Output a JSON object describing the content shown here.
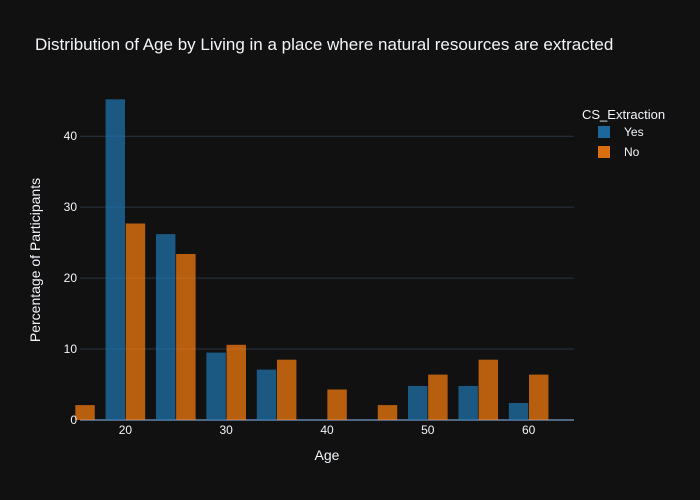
{
  "chart_data": {
    "type": "bar",
    "title": "Distribution of Age by Living in a place where natural resources are extracted",
    "xlabel": "Age",
    "ylabel": "Percentage of Participants",
    "xlim": [
      15.5,
      64.5
    ],
    "ylim": [
      0,
      47.5
    ],
    "xticks": [
      20,
      30,
      40,
      50,
      60
    ],
    "yticks": [
      0,
      10,
      20,
      30,
      40
    ],
    "grid": true,
    "legend": {
      "title": "CS_Extraction",
      "placement": "top-right"
    },
    "bin_width": 5,
    "bins": [
      15,
      20,
      25,
      30,
      35,
      40,
      45,
      50,
      55,
      60
    ],
    "series": [
      {
        "name": "Yes",
        "color": "#1f77b4",
        "values": [
          0,
          45.2,
          26.2,
          9.5,
          7.1,
          0,
          0,
          4.8,
          4.8,
          2.4
        ]
      },
      {
        "name": "No",
        "color": "#ff7f0e",
        "values": [
          2.1,
          27.7,
          23.4,
          10.6,
          8.5,
          4.3,
          2.1,
          6.4,
          8.5,
          6.4
        ]
      }
    ]
  }
}
